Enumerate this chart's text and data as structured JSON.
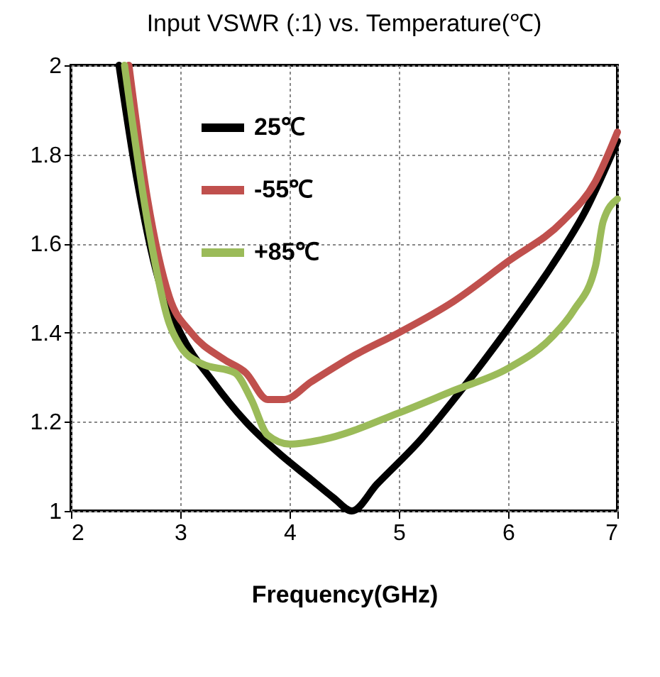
{
  "chart_data": {
    "type": "line",
    "title": "Input VSWR (:1) vs. Temperature(℃)",
    "xlabel": "Frequency(GHz)",
    "xlim": [
      2,
      7
    ],
    "xticks": [
      2,
      3,
      4,
      5,
      6,
      7
    ],
    "ylim": [
      1,
      2
    ],
    "yticks": [
      1,
      1.2,
      1.4,
      1.6,
      1.8,
      2
    ],
    "grid": true,
    "legend": "top left",
    "line_style": "solid",
    "marker": "none",
    "series": [
      {
        "name": "25℃",
        "color": "#000000",
        "x": [
          2.44,
          2.6,
          2.8,
          3.0,
          3.3,
          3.6,
          3.9,
          4.2,
          4.4,
          4.57,
          4.8,
          5.2,
          5.6,
          6.0,
          6.4,
          6.7,
          7.0
        ],
        "values": [
          2,
          1.75,
          1.52,
          1.4,
          1.29,
          1.2,
          1.13,
          1.07,
          1.03,
          1.0,
          1.06,
          1.16,
          1.28,
          1.41,
          1.55,
          1.67,
          1.83
        ]
      },
      {
        "name": "-55℃",
        "color": "#c0504d",
        "x": [
          2.53,
          2.7,
          2.9,
          3.1,
          3.4,
          3.6,
          3.8,
          3.95,
          4.2,
          4.6,
          5.0,
          5.5,
          6.0,
          6.5,
          6.8,
          7.0
        ],
        "values": [
          2,
          1.7,
          1.48,
          1.4,
          1.34,
          1.31,
          1.25,
          1.25,
          1.29,
          1.35,
          1.4,
          1.47,
          1.56,
          1.65,
          1.74,
          1.85
        ]
      },
      {
        "name": "+85℃",
        "color": "#9bbb59",
        "x": [
          2.49,
          2.7,
          2.9,
          3.0,
          3.2,
          3.5,
          3.65,
          3.8,
          4.0,
          4.3,
          5.0,
          5.5,
          6.0,
          6.4,
          6.6,
          6.8,
          6.87,
          7.0
        ],
        "values": [
          2,
          1.65,
          1.42,
          1.37,
          1.33,
          1.31,
          1.25,
          1.17,
          1.15,
          1.16,
          1.22,
          1.27,
          1.32,
          1.39,
          1.45,
          1.55,
          1.65,
          1.7
        ]
      }
    ]
  }
}
